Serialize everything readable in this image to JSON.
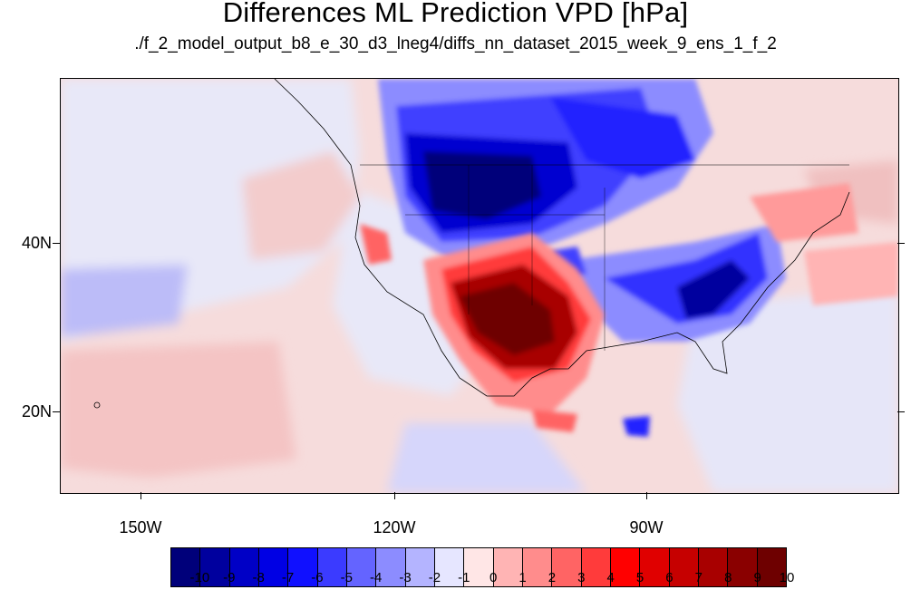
{
  "figure": {
    "title": "Differences ML Prediction VPD [hPa]",
    "subtitle": "./f_2_model_output_b8_e_30_d3_lneg4/diffs_nn_dataset_2015_week_9_ens_1_f_2"
  },
  "map": {
    "lat_labels": [
      "40N",
      "20N"
    ],
    "lon_labels": [
      "150W",
      "120W",
      "90W"
    ],
    "extent": {
      "lon_min": -160,
      "lon_max": -61,
      "lat_min": 10,
      "lat_max": 59
    },
    "colors": {
      "background_pos": "#f6d7d7",
      "background_neg": "#e6e6f6"
    }
  },
  "colorbar": {
    "labels": [
      "-10",
      "-9",
      "-8",
      "-7",
      "-6",
      "-5",
      "-4",
      "-3",
      "-2",
      "-1",
      "0",
      "1",
      "2",
      "3",
      "4",
      "5",
      "6",
      "7",
      "8",
      "9",
      "10"
    ],
    "colors": [
      "#00007a",
      "#00009e",
      "#0000c6",
      "#0000e4",
      "#1010ff",
      "#3b3bff",
      "#6464ff",
      "#8c8cff",
      "#b4b4ff",
      "#e6e6ff",
      "#ffe6e6",
      "#ffb4b4",
      "#ff8c8c",
      "#ff6464",
      "#ff3b3b",
      "#ff0000",
      "#e00000",
      "#c60000",
      "#a80000",
      "#8a0000",
      "#6e0000"
    ]
  }
}
